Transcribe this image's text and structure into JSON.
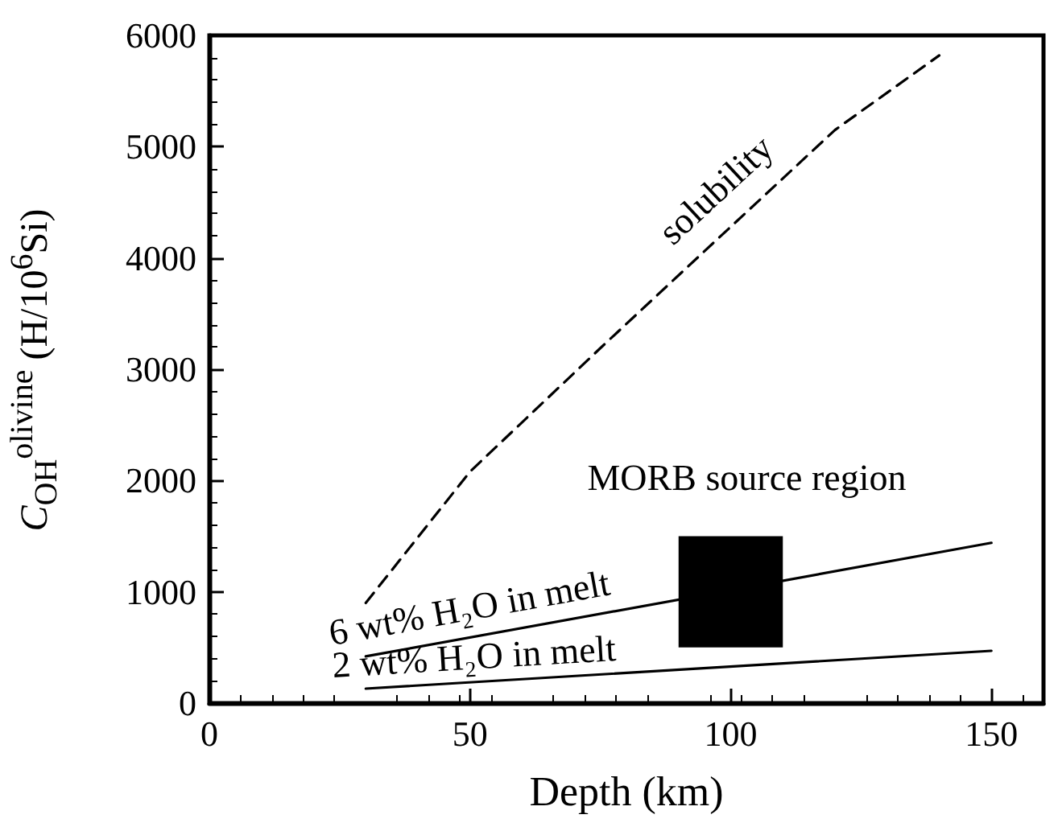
{
  "chart_data": {
    "type": "line",
    "xlabel": "Depth (km)",
    "ylabel": "C$_{OH}$$^{olivine}$ (H/10$^{6}$Si)",
    "xlim": [
      0,
      160
    ],
    "xticks": [
      0,
      50,
      100,
      150
    ],
    "ylim": [
      0,
      6000
    ],
    "yticks": [
      0,
      1000,
      2000,
      3000,
      4000,
      5000,
      6000
    ],
    "grid": false,
    "legend": false,
    "marker": "none",
    "series": [
      {
        "name": "solubility",
        "color": "#000000",
        "line_style": "dashed",
        "x": [
          30,
          50,
          75,
          100,
          120,
          140
        ],
        "values": [
          900,
          2080,
          3190,
          4280,
          5150,
          5820
        ]
      },
      {
        "name": "6 wt% H₂O in melt",
        "color": "#000000",
        "line_style": "solid",
        "x": [
          30,
          150
        ],
        "values": [
          420,
          1440
        ]
      },
      {
        "name": "2 wt% H₂O in melt",
        "color": "#000000",
        "line_style": "solid",
        "x": [
          30,
          150
        ],
        "values": [
          130,
          470
        ]
      },
      {
        "name": "MORB source region",
        "type": "bar",
        "color": "#000000",
        "x": [
          100
        ],
        "base": [
          500
        ],
        "values": [
          1000
        ]
      }
    ]
  }
}
